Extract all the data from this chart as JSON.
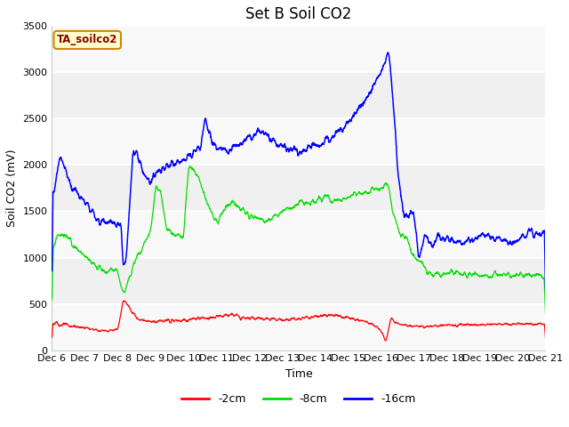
{
  "title": "Set B Soil CO2",
  "xlabel": "Time",
  "ylabel": "Soil CO2 (mV)",
  "ylim": [
    0,
    3500
  ],
  "bg_color": "#ffffff",
  "plot_bg_color": "#f0f0f0",
  "legend_label": "TA_soilco2",
  "legend_bg": "#ffffcc",
  "legend_border": "#cc8800",
  "series": [
    "-2cm",
    "-8cm",
    "-16cm"
  ],
  "colors": [
    "#ff0000",
    "#00dd00",
    "#0000ff"
  ],
  "xtick_labels": [
    "Dec 6",
    "Dec 7",
    "Dec 8",
    "Dec 9",
    "Dec 10",
    "Dec 11",
    "Dec 12",
    "Dec 13",
    "Dec 14",
    "Dec 15",
    "Dec 16",
    "Dec 17",
    "Dec 18",
    "Dec 19",
    "Dec 20",
    "Dec 21"
  ],
  "ytick_labels": [
    "0",
    "500",
    "1000",
    "1500",
    "2000",
    "2500",
    "3000",
    "3500"
  ],
  "ytick_vals": [
    0,
    500,
    1000,
    1500,
    2000,
    2500,
    3000,
    3500
  ],
  "title_fontsize": 12,
  "axis_fontsize": 9,
  "tick_fontsize": 8,
  "n_days": 15,
  "n_pts": 2000
}
